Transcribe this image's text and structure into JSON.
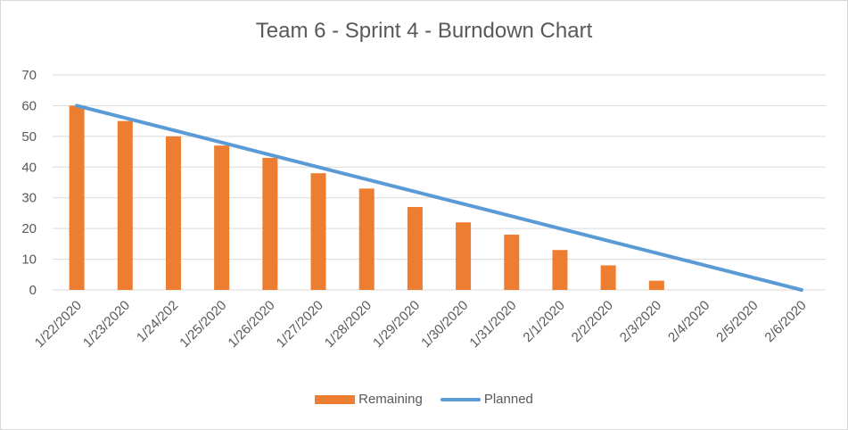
{
  "chart_data": {
    "type": "bar",
    "title": "Team 6 - Sprint 4 - Burndown Chart",
    "categories": [
      "1/22/2020",
      "1/23/2020",
      "1/24/202",
      "1/25/2020",
      "1/26/2020",
      "1/27/2020",
      "1/28/2020",
      "1/29/2020",
      "1/30/2020",
      "1/31/2020",
      "2/1/2020",
      "2/2/2020",
      "2/3/2020",
      "2/4/2020",
      "2/5/2020",
      "2/6/2020"
    ],
    "ylim": [
      0,
      70
    ],
    "yticks": [
      0,
      10,
      20,
      30,
      40,
      50,
      60,
      70
    ],
    "grid": true,
    "legend_position": "bottom",
    "series": [
      {
        "name": "Remaining",
        "type": "bar",
        "color": "#ED7D31",
        "values": [
          60,
          55,
          50,
          47,
          43,
          38,
          33,
          27,
          22,
          18,
          13,
          8,
          3,
          null,
          null,
          null
        ]
      },
      {
        "name": "Planned",
        "type": "line",
        "color": "#5B9BD5",
        "values": [
          60,
          56,
          52,
          48,
          44,
          40,
          36,
          32,
          28,
          24,
          20,
          16,
          12,
          8,
          4,
          0
        ]
      }
    ]
  }
}
